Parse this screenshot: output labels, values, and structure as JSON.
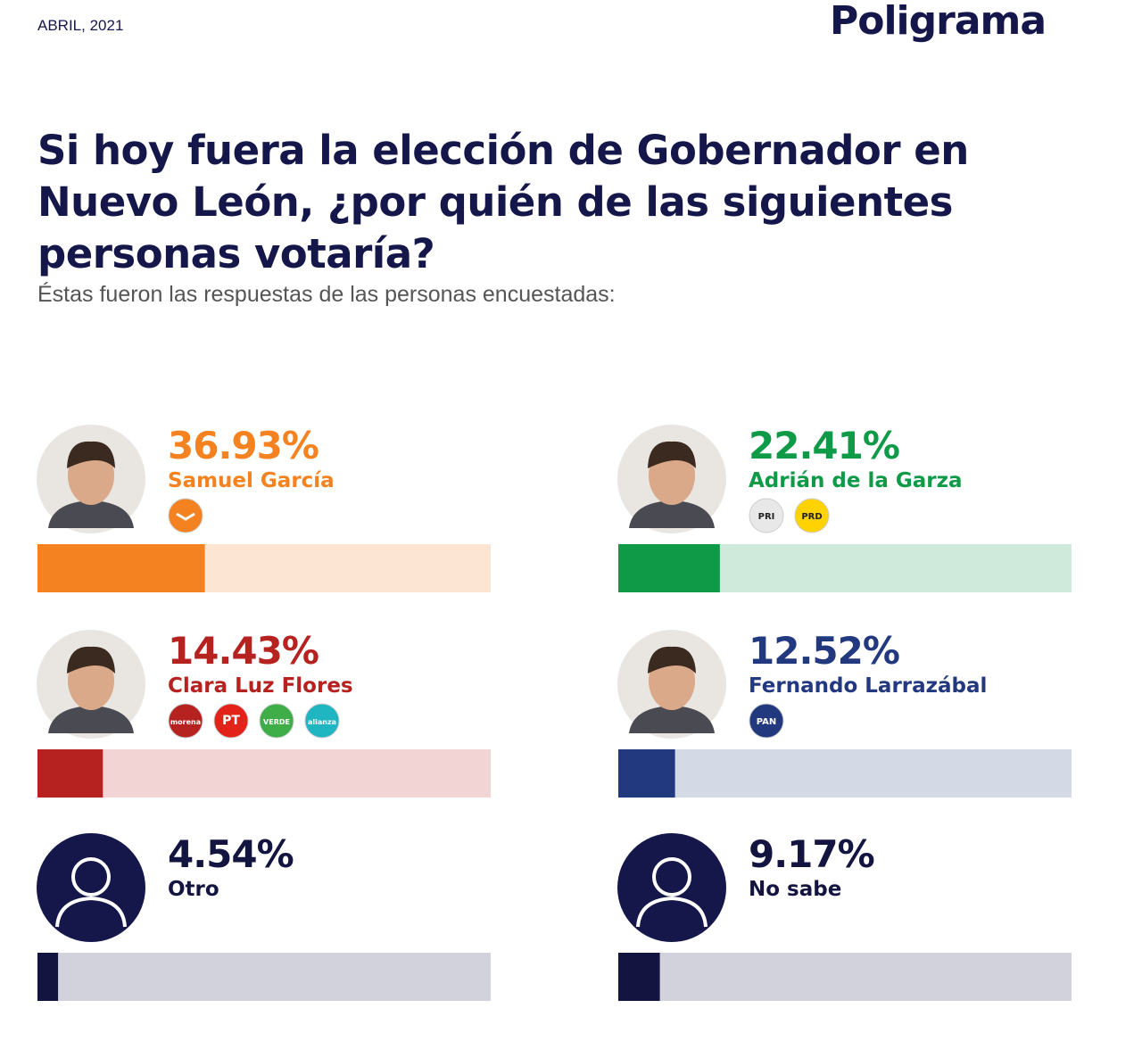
{
  "chart_data": {
    "type": "bar",
    "date": "ABRIL, 2021",
    "brand": "Poligrama",
    "title": "Si hoy fuera la elección de Gobernador en Nuevo León, ¿por quién de las siguientes personas votaría?",
    "subtitle": "Éstas fueron las respuestas de las personas encuestadas:",
    "categories": [
      "Samuel García",
      "Adrián de la Garza",
      "Clara Luz Flores",
      "Fernando Larrazábal",
      "Otro",
      "No sabe"
    ],
    "values": [
      36.93,
      22.41,
      14.43,
      12.52,
      4.54,
      9.17
    ],
    "value_labels": [
      "36.93%",
      "22.41%",
      "14.43%",
      "12.52%",
      "4.54%",
      "9.17%"
    ],
    "colors": [
      "#f58220",
      "#0f9a48",
      "#b5221f",
      "#22387f",
      "#131540",
      "#131540"
    ],
    "track_colors": [
      "#fde5d3",
      "#cfeadb",
      "#f2d4d4",
      "#d3dae6",
      "#d1d2dc",
      "#d1d2dc"
    ],
    "xlim": [
      0,
      100
    ],
    "parties": [
      [
        {
          "color": "#f58220"
        }
      ],
      [
        {
          "label": "PRI",
          "color": "#e8e8e8"
        },
        {
          "label": "PRD",
          "color": "#ffd200"
        }
      ],
      [
        {
          "label": "morena",
          "color": "#b5221f"
        },
        {
          "label": "PT",
          "color": "#e2231a"
        },
        {
          "label": "VERDE",
          "color": "#3fae49"
        },
        {
          "label": "alianza",
          "color": "#1fb6c1"
        }
      ],
      [
        {
          "label": "PAN",
          "color": "#22387f"
        }
      ],
      [],
      []
    ]
  }
}
